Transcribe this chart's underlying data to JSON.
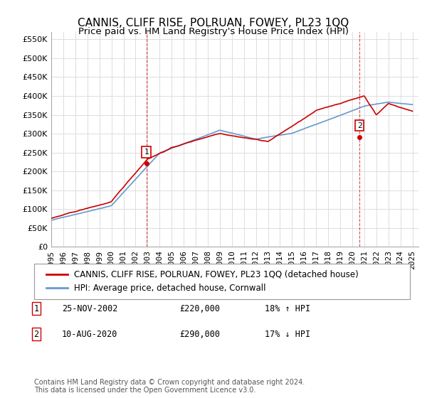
{
  "title": "CANNIS, CLIFF RISE, POLRUAN, FOWEY, PL23 1QQ",
  "subtitle": "Price paid vs. HM Land Registry's House Price Index (HPI)",
  "ylabel_ticks": [
    "£0",
    "£50K",
    "£100K",
    "£150K",
    "£200K",
    "£250K",
    "£300K",
    "£350K",
    "£400K",
    "£450K",
    "£500K",
    "£550K"
  ],
  "ytick_values": [
    0,
    50000,
    100000,
    150000,
    200000,
    250000,
    300000,
    350000,
    400000,
    450000,
    500000,
    550000
  ],
  "ylim": [
    0,
    570000
  ],
  "xlim_start": 1995.0,
  "xlim_end": 2025.5,
  "xtick_years": [
    1995,
    1996,
    1997,
    1998,
    1999,
    2000,
    2001,
    2002,
    2003,
    2004,
    2005,
    2006,
    2007,
    2008,
    2009,
    2010,
    2011,
    2012,
    2013,
    2014,
    2015,
    2016,
    2017,
    2018,
    2019,
    2020,
    2021,
    2022,
    2023,
    2024,
    2025
  ],
  "transaction1_x": 2002.9,
  "transaction1_y": 220000,
  "transaction1_label": "1",
  "transaction2_x": 2020.6,
  "transaction2_y": 290000,
  "transaction2_label": "2",
  "line_red_color": "#cc0000",
  "line_blue_color": "#6699cc",
  "grid_color": "#dddddd",
  "background_color": "#ffffff",
  "legend_label_red": "CANNIS, CLIFF RISE, POLRUAN, FOWEY, PL23 1QQ (detached house)",
  "legend_label_blue": "HPI: Average price, detached house, Cornwall",
  "annotation1_label": "1",
  "annotation1_date": "25-NOV-2002",
  "annotation1_price": "£220,000",
  "annotation1_hpi": "18% ↑ HPI",
  "annotation2_label": "2",
  "annotation2_date": "10-AUG-2020",
  "annotation2_price": "£290,000",
  "annotation2_hpi": "17% ↓ HPI",
  "footer": "Contains HM Land Registry data © Crown copyright and database right 2024.\nThis data is licensed under the Open Government Licence v3.0.",
  "title_fontsize": 11,
  "subtitle_fontsize": 9.5,
  "tick_fontsize": 8,
  "legend_fontsize": 8.5,
  "annotation_fontsize": 8.5,
  "footer_fontsize": 7
}
